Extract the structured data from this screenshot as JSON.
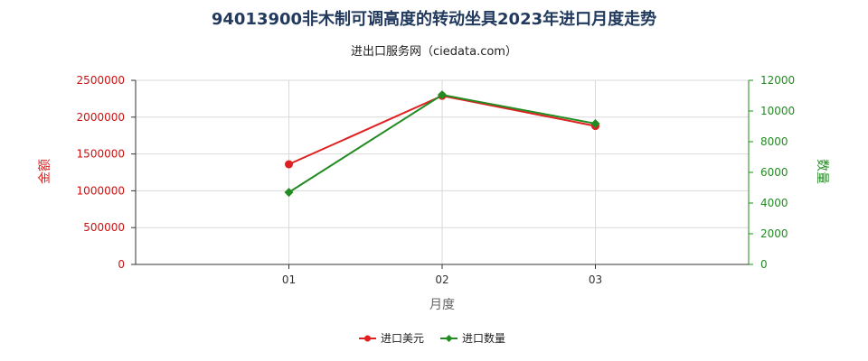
{
  "chart_data": {
    "type": "line",
    "title": "94013900非木制可调高度的转动坐具2023年进口月度走势",
    "subtitle": "进出口服务网（ciedata.com）",
    "xlabel": "月度",
    "ylabel": "金额",
    "y2label": "数量",
    "categories": [
      "01",
      "02",
      "03"
    ],
    "series": [
      {
        "name": "进口美元",
        "yaxis": 0,
        "color": "#e02020",
        "marker": "circle",
        "values": [
          1360000,
          2290000,
          1880000
        ]
      },
      {
        "name": "进口数量",
        "yaxis": 1,
        "color": "#228b22",
        "marker": "diamond",
        "values": [
          4700,
          11050,
          9180
        ]
      }
    ],
    "ylim": [
      0,
      2500000
    ],
    "yticks": [
      0,
      500000,
      1000000,
      1500000,
      2000000,
      2500000
    ],
    "y2lim": [
      0,
      12000
    ],
    "y2ticks": [
      0,
      2000,
      4000,
      6000,
      8000,
      10000,
      12000
    ],
    "grid": true,
    "legend": "bottom"
  }
}
